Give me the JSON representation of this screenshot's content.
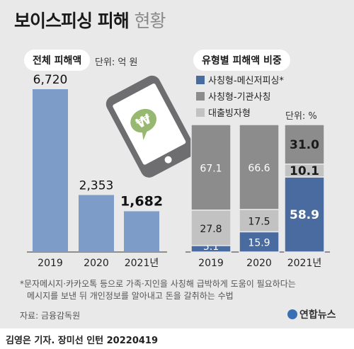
{
  "title": "보이스피싱 피해",
  "title_sub": "현황",
  "left_panel": {
    "title": "전체 피해액",
    "unit": "단위: 억 원"
  },
  "right_panel": {
    "title": "유형별 피해액 비중",
    "unit": "단위: %"
  },
  "footnote_lines": [
    "*문자메시지·카카오톡 등으로 가족·지인을 사칭해 급박하게 도움이 필요하다는",
    "메시지를 보낸 뒤 개인정보를 알아내고 돈을 갈취하는 수법"
  ],
  "source": "자료: 금융감독원",
  "credit": "김영은 기자. 장미선 인턴  20220419",
  "logo": "연합뉴스",
  "phone_icon": "smartphone-won-icon",
  "colors": {
    "bar_left": "#7d9cc8",
    "messenger": "#4a6ba0",
    "agency": "#8c8c8c",
    "loan": "#c2c2c2",
    "background": "#e9e9ea"
  },
  "chart_data": [
    {
      "type": "bar",
      "categories": [
        "2019",
        "2020",
        "2021년"
      ],
      "values": [
        6720,
        2353,
        1682
      ],
      "value_labels": [
        "6,720",
        "2,353",
        "1,682"
      ],
      "ylim": [
        0,
        6720
      ]
    },
    {
      "type": "bar",
      "stacked": true,
      "percent": true,
      "categories": [
        "2019",
        "2020",
        "2021년"
      ],
      "series": [
        {
          "name": "사칭형-메신저피싱*",
          "values": [
            5.1,
            15.9,
            58.9
          ]
        },
        {
          "name": "대출빙자형",
          "values": [
            27.8,
            17.5,
            10.1
          ]
        },
        {
          "name": "사칭형-기관사칭",
          "values": [
            67.1,
            66.6,
            31.0
          ]
        }
      ],
      "legend_order": [
        "사칭형-메신저피싱*",
        "사칭형-기관사칭",
        "대출빙자형"
      ],
      "legend": "top-right",
      "ylim": [
        0,
        100
      ]
    }
  ]
}
